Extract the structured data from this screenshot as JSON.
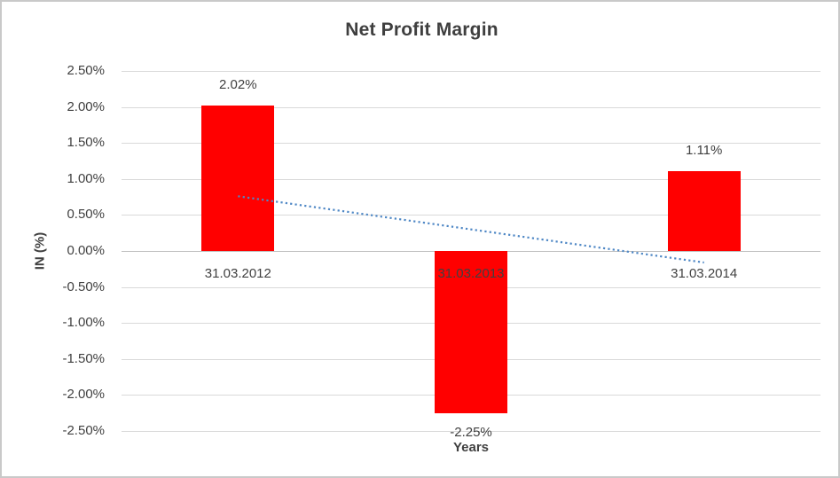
{
  "chart_data": {
    "type": "bar",
    "title": "Net Profit Margin",
    "categories": [
      "31.03.2012",
      "31.03.2013",
      "31.03.2014"
    ],
    "values": [
      2.02,
      -2.25,
      1.11
    ],
    "value_labels": [
      "2.02%",
      "-2.25%",
      "1.11%"
    ],
    "xlabel": "Years",
    "ylabel": "IN (%)",
    "ylim": [
      -2.5,
      2.5
    ],
    "ytick_step": 0.5,
    "ytick_labels": [
      "2.50%",
      "2.00%",
      "1.50%",
      "1.00%",
      "0.50%",
      "0.00%",
      "-0.50%",
      "-1.00%",
      "-1.50%",
      "-2.00%",
      "-2.50%"
    ],
    "grid": "horizontal",
    "legend": "none",
    "bar_color": "#ff0000",
    "text_color": "#404040",
    "gridline_color": "#d9d9d9",
    "zero_line_color": "#bfbfbf",
    "trendline": {
      "kind": "linear",
      "style": "dotted",
      "color": "#4e87c5",
      "start_value": 0.76,
      "end_value": -0.16
    }
  }
}
